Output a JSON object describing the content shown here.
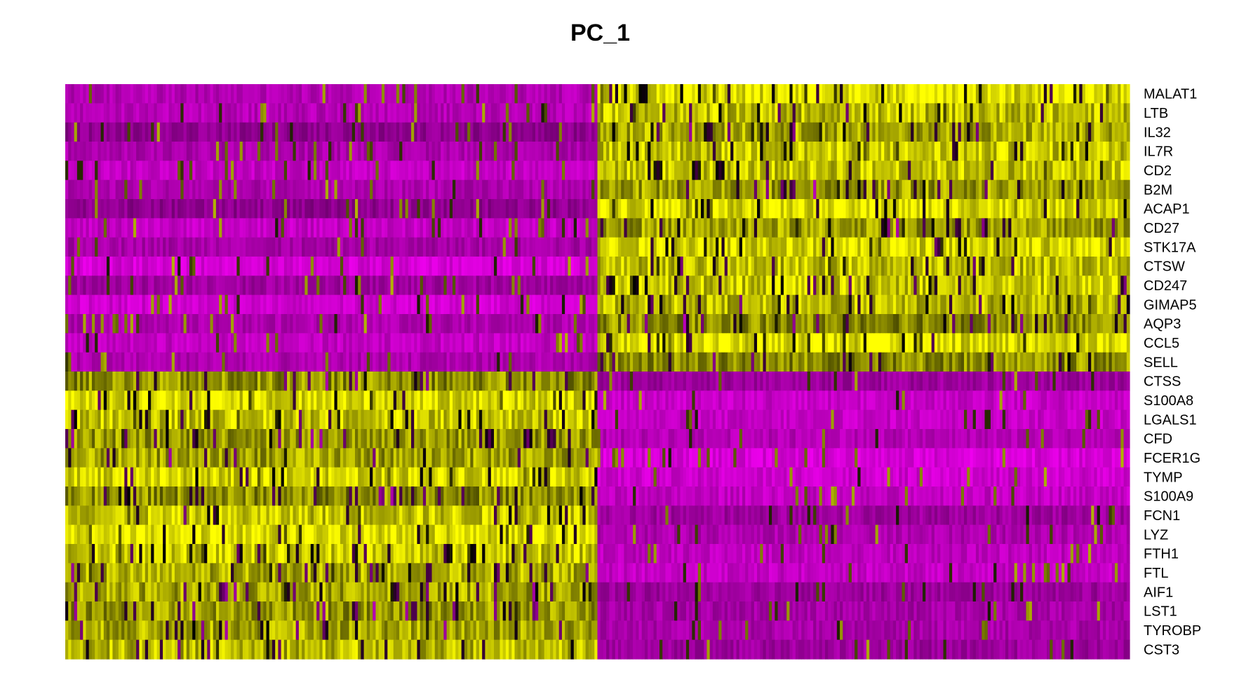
{
  "chart_data": {
    "type": "heatmap",
    "title": "PC_1",
    "xlabel": "",
    "ylabel": "",
    "genes": [
      "MALAT1",
      "LTB",
      "IL32",
      "IL7R",
      "CD2",
      "B2M",
      "ACAP1",
      "CD27",
      "STK17A",
      "CTSW",
      "CD247",
      "GIMAP5",
      "AQP3",
      "CCL5",
      "SELL",
      "CTSS",
      "S100A8",
      "LGALS1",
      "CFD",
      "FCER1G",
      "TYMP",
      "S100A9",
      "FCN1",
      "LYZ",
      "FTH1",
      "FTL",
      "AIF1",
      "LST1",
      "TYROBP",
      "CST3"
    ],
    "cell_groups": [
      {
        "fraction": 0.5,
        "high_genes": [
          "CTSS",
          "S100A8",
          "LGALS1",
          "CFD",
          "FCER1G",
          "TYMP",
          "S100A9",
          "FCN1",
          "LYZ",
          "FTH1",
          "FTL",
          "AIF1",
          "LST1",
          "TYROBP",
          "CST3"
        ]
      },
      {
        "fraction": 0.5,
        "high_genes": [
          "MALAT1",
          "LTB",
          "IL32",
          "IL7R",
          "CD2",
          "B2M",
          "ACAP1",
          "CD27",
          "STK17A",
          "CTSW",
          "CD247",
          "GIMAP5",
          "AQP3",
          "CCL5",
          "SELL"
        ]
      }
    ],
    "color_scale": {
      "low": "#ff00ff",
      "mid": "#000000",
      "high": "#ffff00"
    },
    "legend": "none",
    "grid": false
  }
}
